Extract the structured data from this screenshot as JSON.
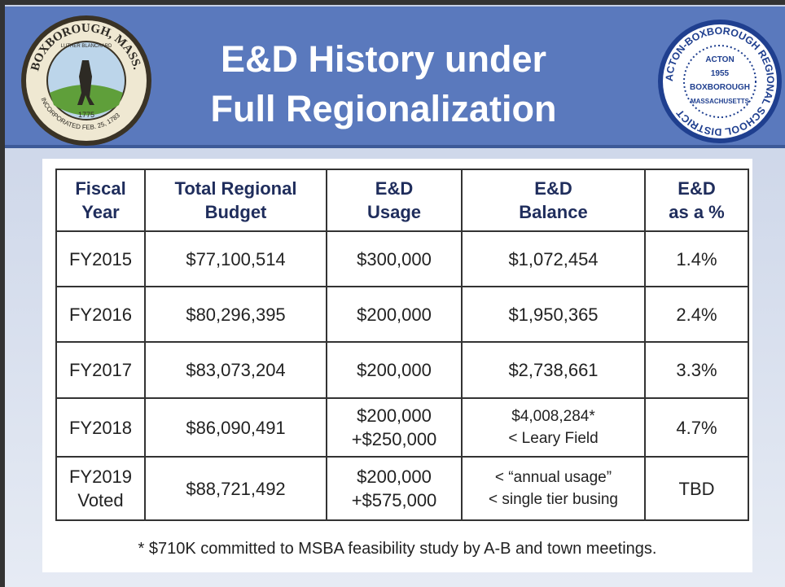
{
  "header": {
    "title_lines": [
      "E&D History under",
      "Full Regionalization"
    ]
  },
  "logos": {
    "left": {
      "ring_top": "BOXBOROUGH, MASS.",
      "ring_bottom": "INCORPORATED FEB. 25, 1783",
      "inner": "LUTHER BLANCHARD",
      "year": "1775"
    },
    "right": {
      "ring_top": "ACTON-BOXBOROUGH REGIONAL SCHOOL DISTRICT",
      "lines": [
        "ACTON",
        "1955",
        "BOXBOROUGH",
        "MASSACHUSETTS"
      ]
    }
  },
  "table": {
    "columns": [
      [
        "Fiscal",
        "Year"
      ],
      [
        "Total Regional",
        "Budget"
      ],
      [
        "E&D",
        "Usage"
      ],
      [
        "E&D",
        "Balance"
      ],
      [
        "E&D",
        "as a %"
      ]
    ],
    "rows": [
      [
        [
          "FY2015"
        ],
        [
          "$77,100,514"
        ],
        [
          "$300,000"
        ],
        [
          "$1,072,454"
        ],
        [
          "1.4%"
        ]
      ],
      [
        [
          "FY2016"
        ],
        [
          "$80,296,395"
        ],
        [
          "$200,000"
        ],
        [
          "$1,950,365"
        ],
        [
          "2.4%"
        ]
      ],
      [
        [
          "FY2017"
        ],
        [
          "$83,073,204"
        ],
        [
          "$200,000"
        ],
        [
          "$2,738,661"
        ],
        [
          "3.3%"
        ]
      ],
      [
        [
          "FY2018"
        ],
        [
          "$86,090,491"
        ],
        [
          "$200,000",
          "+$250,000"
        ],
        [
          "$4,008,284*",
          "< Leary Field"
        ],
        [
          "4.7%"
        ]
      ],
      [
        [
          "FY2019",
          "Voted"
        ],
        [
          "$88,721,492"
        ],
        [
          "$200,000",
          "+$575,000"
        ],
        [
          "< “annual usage”",
          "< single tier busing"
        ],
        [
          "TBD"
        ]
      ]
    ]
  },
  "footnote": "* $710K committed to MSBA feasibility study by A-B and town meetings."
}
